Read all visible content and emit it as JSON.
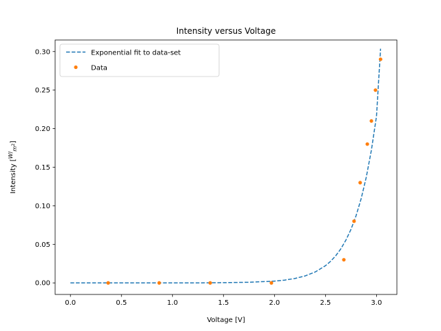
{
  "chart_data": {
    "type": "scatter",
    "title": "Intensity versus Voltage",
    "xlabel": "Voltage [V]",
    "ylabel": "Intensity",
    "ylabel_unit_num": "W",
    "ylabel_unit_den": "m",
    "ylabel_unit_exp": "2",
    "xlim": [
      -0.15,
      3.2
    ],
    "ylim": [
      -0.015,
      0.315
    ],
    "x_ticks": [
      0.0,
      0.5,
      1.0,
      1.5,
      2.0,
      2.5,
      3.0
    ],
    "x_tick_labels": [
      "0.0",
      "0.5",
      "1.0",
      "1.5",
      "2.0",
      "2.5",
      "3.0"
    ],
    "y_ticks": [
      0.0,
      0.05,
      0.1,
      0.15,
      0.2,
      0.25,
      0.3
    ],
    "y_tick_labels": [
      "0.00",
      "0.05",
      "0.10",
      "0.15",
      "0.20",
      "0.25",
      "0.30"
    ],
    "grid": false,
    "legend_position": "top-left",
    "series": [
      {
        "name": "Exponential fit to data-set",
        "kind": "line",
        "style": "dashed",
        "color": "#1f77b4",
        "x": [
          0.0,
          0.25,
          0.5,
          0.75,
          1.0,
          1.25,
          1.5,
          1.75,
          2.0,
          2.1,
          2.2,
          2.3,
          2.4,
          2.5,
          2.55,
          2.6,
          2.65,
          2.7,
          2.75,
          2.8,
          2.85,
          2.9,
          2.95,
          3.0,
          3.04
        ],
        "y": [
          0.0,
          0.0,
          0.0,
          0.0,
          0.0,
          0.0,
          0.0003,
          0.0008,
          0.0023,
          0.0036,
          0.0057,
          0.009,
          0.0142,
          0.0223,
          0.028,
          0.0351,
          0.0441,
          0.0554,
          0.0694,
          0.0872,
          0.1094,
          0.1372,
          0.1722,
          0.2161,
          0.3037
        ]
      },
      {
        "name": "Data",
        "kind": "scatter",
        "color": "#ff7f0e",
        "x": [
          0.37,
          0.87,
          1.37,
          1.97,
          2.68,
          2.78,
          2.84,
          2.91,
          2.95,
          2.99,
          3.04
        ],
        "y": [
          0.0,
          0.0,
          0.0,
          0.0,
          0.03,
          0.08,
          0.13,
          0.18,
          0.21,
          0.25,
          0.29
        ]
      }
    ]
  }
}
